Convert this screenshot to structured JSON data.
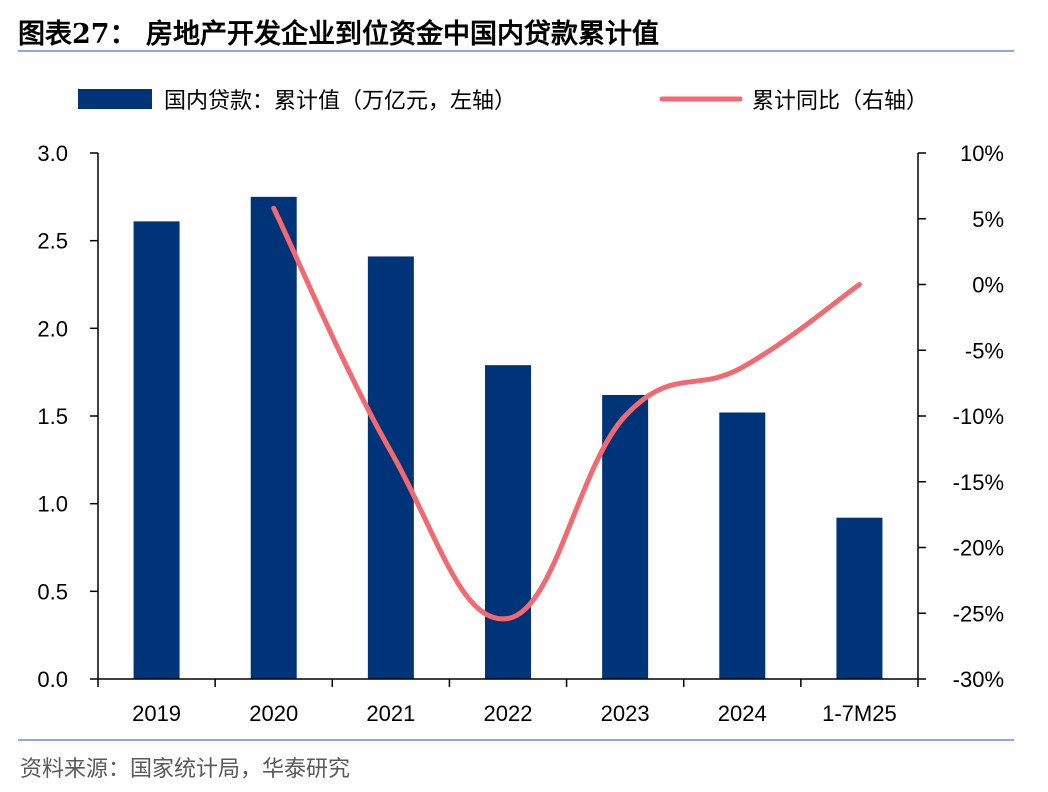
{
  "title": "图表27：  房地产开发企业到位资金中国内贷款累计值",
  "source": "资料来源：国家统计局，华泰研究",
  "colors": {
    "bar": "#003478",
    "line": "#f2696f",
    "rule": "#8ea9db"
  },
  "chart_data": {
    "type": "bar+line",
    "categories": [
      "2019",
      "2020",
      "2021",
      "2022",
      "2023",
      "2024",
      "1-7M25"
    ],
    "series": [
      {
        "name": "国内贷款：累计值（万亿元，左轴）",
        "type": "bar",
        "axis": "left",
        "values": [
          2.61,
          2.75,
          2.41,
          1.79,
          1.62,
          1.52,
          0.92
        ]
      },
      {
        "name": "累计同比（右轴）",
        "type": "line",
        "axis": "right",
        "values": [
          null,
          5.8,
          -12.7,
          -25.4,
          -10.0,
          -6.3,
          0.0
        ]
      }
    ],
    "left_axis": {
      "min": 0,
      "max": 3,
      "step": 0.5,
      "ticks": [
        "0.0",
        "0.5",
        "1.0",
        "1.5",
        "2.0",
        "2.5",
        "3.0"
      ]
    },
    "right_axis": {
      "min": -30,
      "max": 10,
      "step": 5,
      "ticks": [
        "-30%",
        "-25%",
        "-20%",
        "-15%",
        "-10%",
        "-5%",
        "0%",
        "5%",
        "10%"
      ]
    },
    "grid": false,
    "legend_position": "top"
  }
}
